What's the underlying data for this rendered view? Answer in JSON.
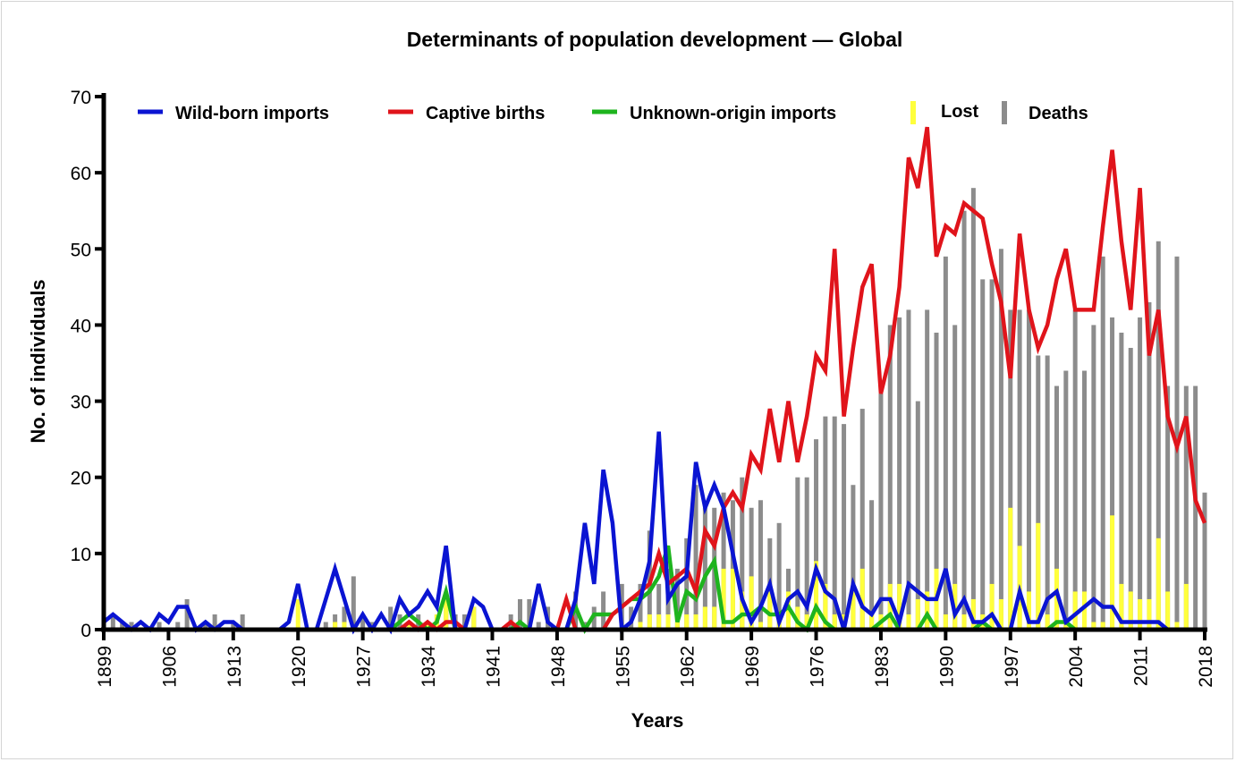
{
  "chart_data": {
    "type": "line",
    "title": "Determinants of population development — Global",
    "xlabel": "Years",
    "ylabel": "No. of individuals",
    "xlim": [
      1899,
      2018
    ],
    "ylim": [
      0,
      70
    ],
    "grid": false,
    "legend_position": "top",
    "x_ticks": [
      "1899",
      "1906",
      "1913",
      "1920",
      "1927",
      "1934",
      "1941",
      "1948",
      "1955",
      "1962",
      "1969",
      "1976",
      "1983",
      "1990",
      "1997",
      "2004",
      "2011",
      "2018"
    ],
    "y_ticks": [
      "0",
      "10",
      "20",
      "30",
      "40",
      "50",
      "60",
      "70"
    ],
    "x_start": 1899,
    "series": [
      {
        "name": "Wild-born imports",
        "kind": "line",
        "color": "#0a14d2",
        "values": [
          1,
          2,
          1,
          0,
          1,
          0,
          2,
          1,
          3,
          3,
          0,
          1,
          0,
          1,
          1,
          0,
          0,
          0,
          0,
          0,
          1,
          6,
          0,
          0,
          4,
          8,
          4,
          0,
          2,
          0,
          2,
          0,
          4,
          2,
          3,
          5,
          3,
          11,
          0,
          0,
          4,
          3,
          0,
          0,
          0,
          0,
          0,
          6,
          1,
          0,
          0,
          4,
          14,
          6,
          21,
          14,
          0,
          1,
          4,
          9,
          26,
          4,
          6,
          7,
          22,
          16,
          19,
          16,
          10,
          4,
          1,
          3,
          6,
          1,
          4,
          5,
          3,
          8,
          5,
          4,
          0,
          6,
          3,
          2,
          4,
          4,
          1,
          6,
          5,
          4,
          4,
          8,
          2,
          4,
          1,
          1,
          2,
          0,
          0,
          5,
          1,
          1,
          4,
          5,
          1,
          2,
          3,
          4,
          3,
          3,
          1,
          1,
          1,
          1,
          1,
          0,
          null,
          null,
          null,
          null
        ]
      },
      {
        "name": "Captive births",
        "kind": "line",
        "color": "#e0141b",
        "values": [
          null,
          null,
          null,
          null,
          null,
          null,
          null,
          null,
          null,
          null,
          null,
          null,
          null,
          null,
          null,
          null,
          null,
          null,
          null,
          null,
          null,
          null,
          null,
          null,
          null,
          null,
          null,
          null,
          null,
          null,
          null,
          null,
          0,
          1,
          0,
          1,
          0,
          1,
          1,
          0,
          0,
          0,
          0,
          0,
          1,
          0,
          0,
          0,
          0,
          0,
          4,
          0,
          0,
          0,
          0,
          2,
          3,
          4,
          5,
          6,
          10,
          6,
          7,
          8,
          5,
          13,
          11,
          16,
          18,
          16,
          23,
          21,
          29,
          22,
          30,
          22,
          28,
          36,
          34,
          50,
          28,
          37,
          45,
          48,
          31,
          36,
          45,
          62,
          58,
          66,
          49,
          53,
          52,
          56,
          55,
          54,
          48,
          43,
          33,
          52,
          42,
          37,
          40,
          46,
          50,
          42,
          42,
          42,
          53,
          63,
          51,
          42,
          58,
          36,
          42,
          28,
          24,
          28,
          17,
          14
        ]
      },
      {
        "name": "Unknown-origin imports",
        "kind": "line",
        "color": "#1eb41e",
        "values": [
          null,
          null,
          null,
          null,
          null,
          null,
          null,
          null,
          null,
          null,
          null,
          null,
          null,
          null,
          null,
          null,
          null,
          null,
          null,
          null,
          null,
          null,
          null,
          null,
          null,
          null,
          null,
          null,
          null,
          0,
          0,
          0,
          1,
          2,
          1,
          0,
          1,
          5,
          0,
          0,
          0,
          0,
          0,
          0,
          0,
          1,
          0,
          0,
          0,
          0,
          0,
          3,
          0,
          2,
          2,
          2,
          3,
          4,
          4,
          5,
          7,
          11,
          1,
          5,
          4,
          7,
          9,
          1,
          1,
          2,
          2,
          3,
          2,
          2,
          3,
          1,
          0,
          3,
          1,
          0,
          0,
          0,
          0,
          0,
          1,
          2,
          0,
          0,
          0,
          2,
          0,
          0,
          0,
          0,
          0,
          1,
          0,
          0,
          0,
          0,
          0,
          0,
          0,
          1,
          1,
          0,
          0,
          null,
          null,
          null,
          null,
          null,
          null,
          null,
          null,
          null,
          null,
          null,
          null,
          null
        ]
      },
      {
        "name": "Lost",
        "kind": "bar",
        "color": "#ffff3c",
        "values": [
          0,
          0,
          0,
          0,
          0,
          0,
          0,
          0,
          0,
          0,
          0,
          0,
          0,
          0,
          0,
          0,
          0,
          0,
          0,
          0,
          0,
          4,
          0,
          0,
          0,
          1,
          1,
          0,
          0,
          0,
          0,
          0,
          0,
          1,
          0,
          1,
          2,
          4,
          0,
          0,
          3,
          0,
          0,
          0,
          0,
          0,
          0,
          0,
          0,
          0,
          0,
          0,
          0,
          0,
          0,
          0,
          0,
          0,
          1,
          2,
          2,
          2,
          1,
          2,
          2,
          3,
          3,
          8,
          8,
          5,
          7,
          1,
          5,
          2,
          5,
          3,
          2,
          9,
          6,
          2,
          2,
          6,
          8,
          2,
          2,
          6,
          6,
          2,
          4,
          5,
          8,
          2,
          6,
          2,
          4,
          2,
          6,
          4,
          16,
          11,
          5,
          14,
          2,
          8,
          1,
          5,
          5,
          1,
          1,
          15,
          6,
          5,
          4,
          4,
          12,
          5,
          1,
          6,
          0,
          0
        ]
      },
      {
        "name": "Deaths",
        "kind": "bar",
        "color": "#8c8c8c",
        "values": [
          1,
          2,
          1,
          1,
          0,
          0,
          1,
          0,
          1,
          4,
          0,
          1,
          2,
          0,
          1,
          2,
          0,
          0,
          0,
          0,
          0,
          0,
          0,
          0,
          1,
          2,
          3,
          7,
          2,
          1,
          0,
          3,
          2,
          1,
          2,
          0,
          2,
          4,
          2,
          2,
          3,
          0,
          0,
          0,
          2,
          4,
          4,
          1,
          3,
          0,
          0,
          5,
          1,
          3,
          5,
          0,
          6,
          3,
          6,
          13,
          6,
          8,
          8,
          12,
          19,
          16,
          16,
          18,
          17,
          20,
          16,
          17,
          12,
          14,
          8,
          20,
          20,
          25,
          28,
          28,
          27,
          19,
          29,
          17,
          31,
          40,
          41,
          42,
          30,
          42,
          39,
          49,
          40,
          55,
          58,
          46,
          46,
          50,
          42,
          42,
          42,
          36,
          36,
          32,
          34,
          42,
          34,
          40,
          49,
          41,
          39,
          37,
          41,
          43,
          51,
          32,
          49,
          32,
          32,
          18
        ]
      }
    ]
  }
}
